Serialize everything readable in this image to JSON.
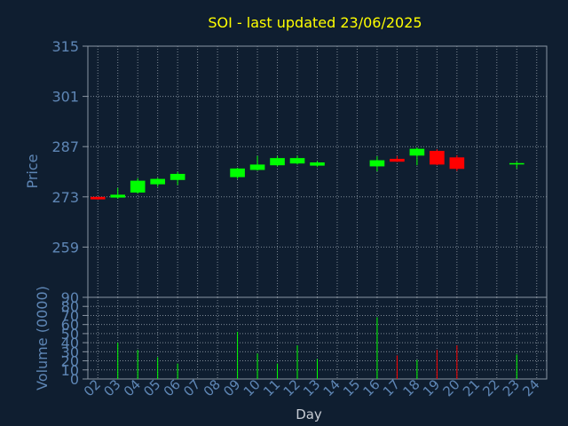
{
  "chart_data": {
    "type": "candlestick",
    "title": "SOI - last updated 23/06/2025",
    "xlabel": "Day",
    "price_panel": {
      "ylabel": "Price",
      "ylim": [
        245,
        315
      ],
      "yticks": [
        315,
        301,
        287,
        273,
        259
      ],
      "grid": true
    },
    "volume_panel": {
      "ylabel": "Volume (0000)",
      "ylim": [
        0,
        90
      ],
      "yticks": [
        0,
        10,
        20,
        30,
        40,
        50,
        60,
        70,
        80,
        90
      ],
      "grid": true
    },
    "x_tick_labels": [
      "02",
      "03",
      "04",
      "05",
      "06",
      "07",
      "08",
      "09",
      "10",
      "11",
      "12",
      "13",
      "14",
      "15",
      "16",
      "17",
      "18",
      "19",
      "20",
      "21",
      "22",
      "23",
      "24"
    ],
    "candles": [
      {
        "day": "02",
        "open": 273.0,
        "high": 273.0,
        "low": 272.2,
        "close": 272.3,
        "volume": 0
      },
      {
        "day": "03",
        "open": 272.8,
        "high": 275.5,
        "low": 272.5,
        "close": 273.6,
        "volume": 40
      },
      {
        "day": "04",
        "open": 274.2,
        "high": 278.2,
        "low": 273.9,
        "close": 277.5,
        "volume": 32
      },
      {
        "day": "05",
        "open": 276.5,
        "high": 278.3,
        "low": 275.8,
        "close": 278.0,
        "volume": 24
      },
      {
        "day": "06",
        "open": 277.7,
        "high": 279.9,
        "low": 276.3,
        "close": 279.4,
        "volume": 17
      },
      {
        "day": "09",
        "open": 278.5,
        "high": 281.1,
        "low": 278.0,
        "close": 280.9,
        "volume": 52
      },
      {
        "day": "10",
        "open": 280.5,
        "high": 284.4,
        "low": 280.3,
        "close": 282.0,
        "volume": 28
      },
      {
        "day": "11",
        "open": 281.8,
        "high": 284.4,
        "low": 281.5,
        "close": 283.8,
        "volume": 17
      },
      {
        "day": "12",
        "open": 282.3,
        "high": 284.5,
        "low": 282.0,
        "close": 283.8,
        "volume": 37
      },
      {
        "day": "13",
        "open": 281.7,
        "high": 283.0,
        "low": 281.3,
        "close": 282.6,
        "volume": 22
      },
      {
        "day": "16",
        "open": 281.5,
        "high": 284.3,
        "low": 280.1,
        "close": 283.2,
        "volume": 68
      },
      {
        "day": "17",
        "open": 283.6,
        "high": 284.4,
        "low": 282.7,
        "close": 282.8,
        "volume": 26
      },
      {
        "day": "18",
        "open": 284.5,
        "high": 286.8,
        "low": 281.8,
        "close": 286.4,
        "volume": 21
      },
      {
        "day": "19",
        "open": 285.8,
        "high": 286.3,
        "low": 281.8,
        "close": 282.0,
        "volume": 32
      },
      {
        "day": "20",
        "open": 284.0,
        "high": 284.6,
        "low": 280.2,
        "close": 280.8,
        "volume": 37
      },
      {
        "day": "23",
        "open": 282.1,
        "high": 282.8,
        "low": 280.9,
        "close": 282.4,
        "volume": 27
      }
    ],
    "colors": {
      "up": "#00ff00",
      "down": "#ff0000",
      "background": "#0f1e30",
      "plot_background": "#0f1e30",
      "grid": "#7f8a96",
      "axis_text": "#5e86b5",
      "title": "#ffff00",
      "xlabel": "#c7ccd4"
    }
  }
}
